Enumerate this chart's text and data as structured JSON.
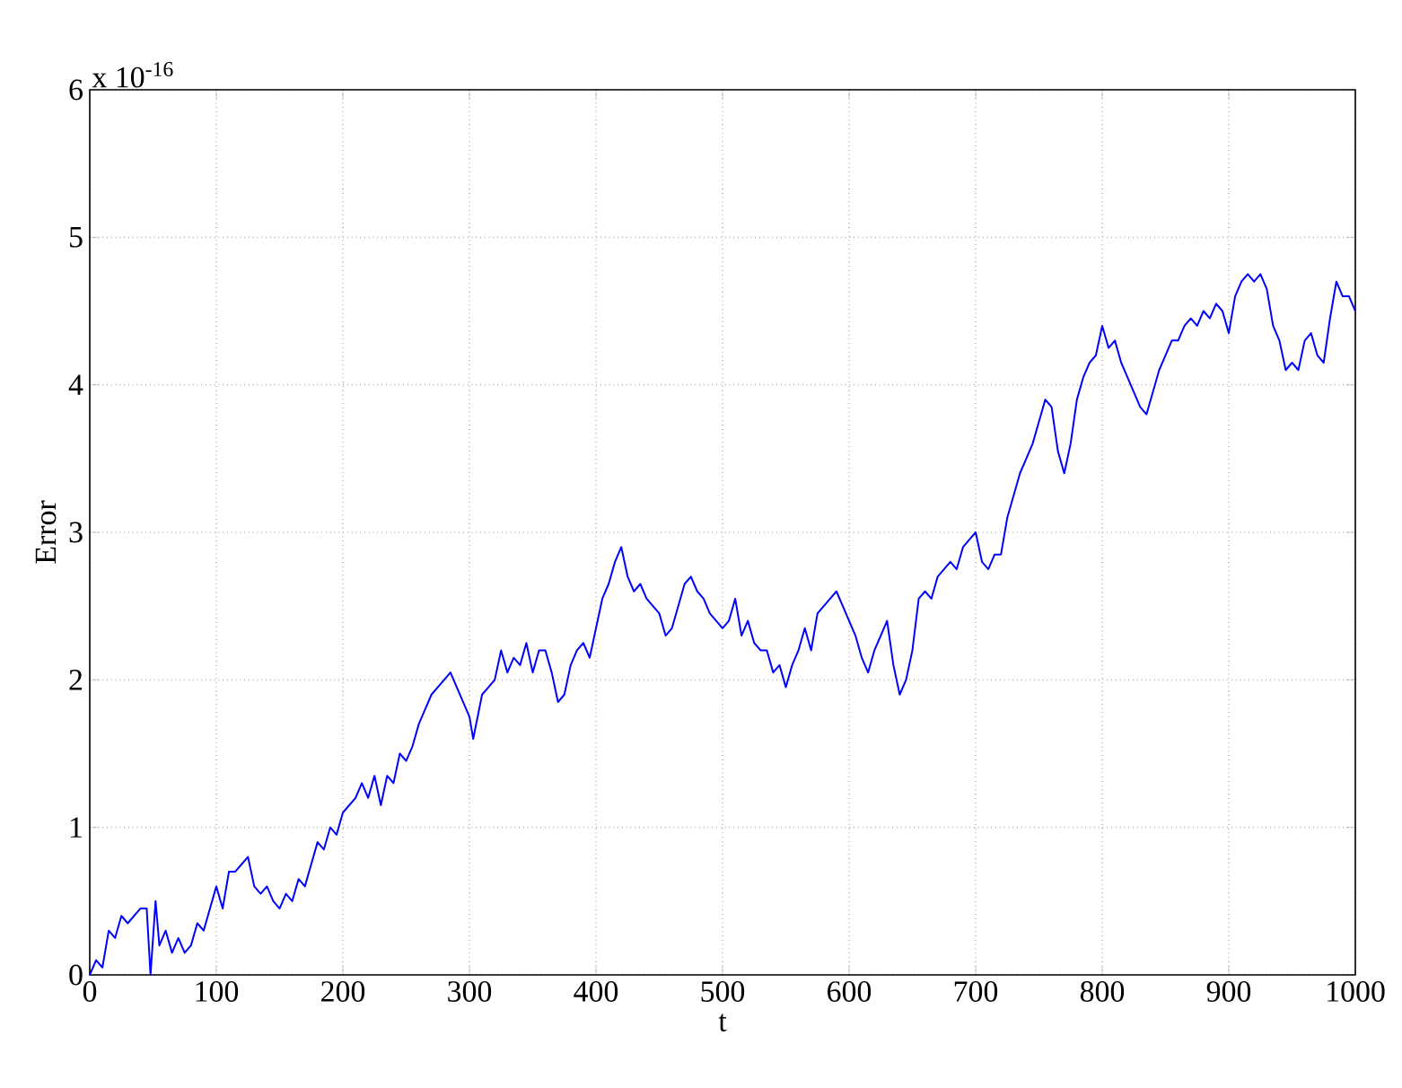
{
  "chart_data": {
    "type": "line",
    "xlabel": "t",
    "ylabel": "Error",
    "annotations": [
      "x 10$^{-16}$"
    ],
    "x": [
      0,
      5,
      10,
      15,
      20,
      25,
      30,
      40,
      45,
      48,
      52,
      55,
      60,
      65,
      70,
      75,
      80,
      85,
      90,
      95,
      100,
      105,
      110,
      115,
      120,
      125,
      130,
      135,
      140,
      145,
      150,
      155,
      160,
      165,
      170,
      175,
      180,
      185,
      190,
      195,
      200,
      210,
      215,
      220,
      225,
      230,
      235,
      240,
      245,
      250,
      255,
      260,
      265,
      270,
      280,
      285,
      290,
      300,
      303,
      310,
      315,
      320,
      325,
      330,
      335,
      340,
      345,
      350,
      355,
      360,
      365,
      370,
      375,
      380,
      385,
      390,
      395,
      400,
      405,
      410,
      415,
      420,
      425,
      430,
      435,
      440,
      445,
      450,
      455,
      460,
      465,
      470,
      475,
      480,
      485,
      490,
      495,
      500,
      505,
      510,
      515,
      520,
      525,
      530,
      535,
      540,
      545,
      550,
      555,
      560,
      565,
      570,
      575,
      580,
      585,
      590,
      595,
      600,
      605,
      610,
      615,
      620,
      625,
      630,
      635,
      640,
      645,
      650,
      655,
      660,
      665,
      670,
      675,
      680,
      685,
      690,
      695,
      700,
      705,
      710,
      715,
      720,
      725,
      730,
      735,
      740,
      745,
      750,
      755,
      760,
      765,
      770,
      775,
      780,
      785,
      790,
      795,
      800,
      805,
      810,
      815,
      820,
      825,
      830,
      835,
      840,
      845,
      850,
      855,
      860,
      865,
      870,
      875,
      880,
      885,
      890,
      895,
      900,
      905,
      910,
      915,
      920,
      925,
      930,
      935,
      940,
      945,
      950,
      955,
      960,
      965,
      970,
      975,
      980,
      985,
      990,
      995,
      1000
    ],
    "values": [
      0.0,
      0.1,
      0.05,
      0.3,
      0.25,
      0.4,
      0.35,
      0.45,
      0.45,
      0.0,
      0.5,
      0.2,
      0.3,
      0.15,
      0.25,
      0.15,
      0.2,
      0.35,
      0.3,
      0.45,
      0.6,
      0.45,
      0.7,
      0.7,
      0.75,
      0.8,
      0.6,
      0.55,
      0.6,
      0.5,
      0.45,
      0.55,
      0.5,
      0.65,
      0.6,
      0.75,
      0.9,
      0.85,
      1.0,
      0.95,
      1.1,
      1.2,
      1.3,
      1.2,
      1.35,
      1.15,
      1.35,
      1.3,
      1.5,
      1.45,
      1.55,
      1.7,
      1.8,
      1.9,
      2.0,
      2.05,
      1.95,
      1.75,
      1.6,
      1.9,
      1.95,
      2.0,
      2.2,
      2.05,
      2.15,
      2.1,
      2.25,
      2.05,
      2.2,
      2.2,
      2.05,
      1.85,
      1.9,
      2.1,
      2.2,
      2.25,
      2.15,
      2.35,
      2.55,
      2.65,
      2.8,
      2.9,
      2.7,
      2.6,
      2.65,
      2.55,
      2.5,
      2.45,
      2.3,
      2.35,
      2.5,
      2.65,
      2.7,
      2.6,
      2.55,
      2.45,
      2.4,
      2.35,
      2.4,
      2.55,
      2.3,
      2.4,
      2.25,
      2.2,
      2.2,
      2.05,
      2.1,
      1.95,
      2.1,
      2.2,
      2.35,
      2.2,
      2.45,
      2.5,
      2.55,
      2.6,
      2.5,
      2.4,
      2.3,
      2.15,
      2.05,
      2.2,
      2.3,
      2.4,
      2.1,
      1.9,
      2.0,
      2.2,
      2.55,
      2.6,
      2.55,
      2.7,
      2.75,
      2.8,
      2.75,
      2.9,
      2.95,
      3.0,
      2.8,
      2.75,
      2.85,
      2.85,
      3.1,
      3.25,
      3.4,
      3.5,
      3.6,
      3.75,
      3.9,
      3.85,
      3.55,
      3.4,
      3.6,
      3.9,
      4.05,
      4.15,
      4.2,
      4.4,
      4.25,
      4.3,
      4.15,
      4.05,
      3.95,
      3.85,
      3.8,
      3.95,
      4.1,
      4.2,
      4.3,
      4.3,
      4.4,
      4.45,
      4.4,
      4.5,
      4.45,
      4.55,
      4.5,
      4.35,
      4.6,
      4.7,
      4.75,
      4.7,
      4.75,
      4.65,
      4.4,
      4.3,
      4.1,
      4.15,
      4.1,
      4.3,
      4.35,
      4.2,
      4.15,
      4.45,
      4.7,
      4.6,
      4.6,
      4.5
    ],
    "color": "#0000ff",
    "xlim": [
      0,
      1000
    ],
    "ylim": [
      0,
      6
    ],
    "xticks": [
      0,
      100,
      200,
      300,
      400,
      500,
      600,
      700,
      800,
      900,
      1000
    ],
    "yticks": [
      0,
      1,
      2,
      3,
      4,
      5,
      6
    ],
    "grid": true
  }
}
